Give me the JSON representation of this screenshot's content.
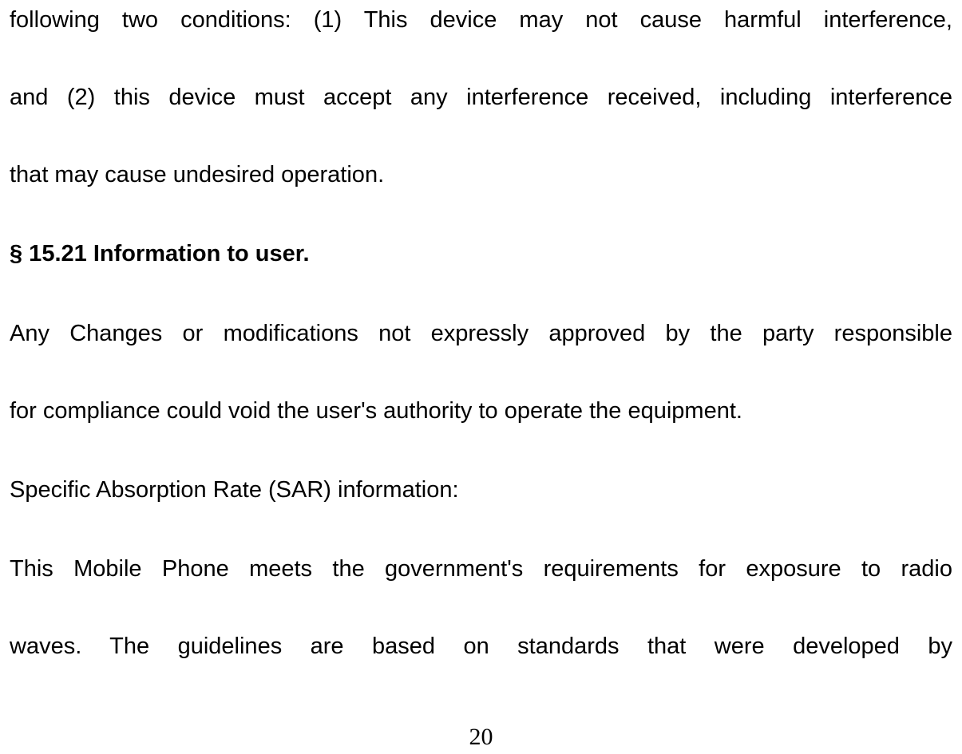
{
  "document": {
    "background_color": "#ffffff",
    "text_color": "#000000",
    "body_font_family": "Arial",
    "body_font_size_pt": 22,
    "pagenum_font_family": "Times New Roman",
    "pagenum_font_size_pt": 22,
    "line_spacing": "double",
    "paragraphs": {
      "p1_line1": "following two conditions: (1) This device may not cause harmful interference,",
      "p1_line2": "and (2) this device must accept any interference received, including interference",
      "p1_line3": "that may cause undesired operation.",
      "heading": "§ 15.21 Information to user.",
      "p2_line1": "Any Changes or modifications not expressly approved by the party responsible",
      "p2_line2": "for compliance could void the user's authority to operate the equipment.",
      "p3": "Specific Absorption Rate (SAR) information:",
      "p4_line1": "This Mobile Phone meets the government's requirements for exposure to radio",
      "p4_line2": "waves. The guidelines are based on standards that were developed by"
    },
    "page_number": "20"
  }
}
